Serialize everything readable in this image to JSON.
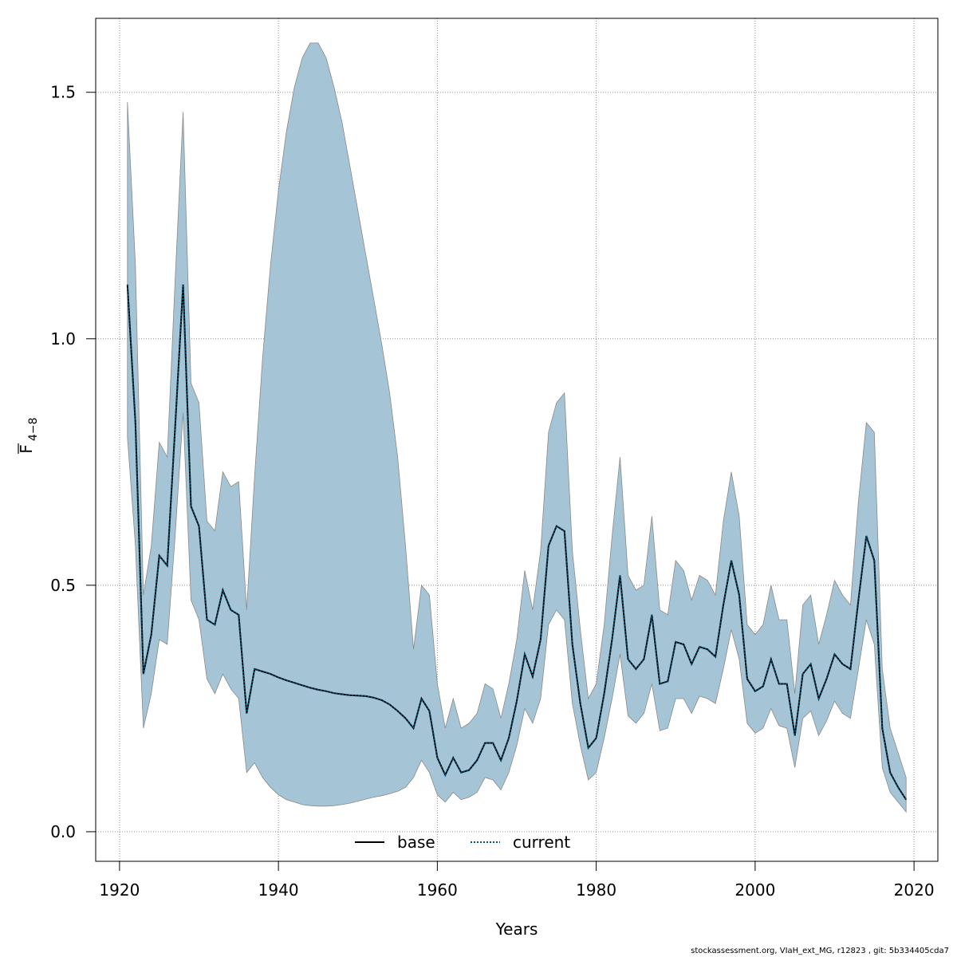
{
  "chart_data": {
    "type": "area",
    "xlabel": "Years",
    "ylabel_main": "F",
    "ylabel_sub": "4−8",
    "xlim": [
      1917,
      2023
    ],
    "ylim": [
      -0.06,
      1.65
    ],
    "x_ticks": [
      1920,
      1940,
      1960,
      1980,
      2000,
      2020
    ],
    "y_ticks": [
      0.0,
      0.5,
      1.0,
      1.5
    ],
    "y_tick_labels": [
      "0.0",
      "0.5",
      "1.0",
      "1.5"
    ],
    "grid": true,
    "band_color": "#a5c4d5",
    "band_edge_color": "#8a8a8a",
    "legend_position": "bottom-center",
    "legend": [
      {
        "label": "base",
        "style": "solid",
        "color": "#000000"
      },
      {
        "label": "current",
        "style": "dotted",
        "color": "#00506e"
      }
    ],
    "years": [
      1921,
      1922,
      1923,
      1924,
      1925,
      1926,
      1927,
      1928,
      1929,
      1930,
      1931,
      1932,
      1933,
      1934,
      1935,
      1936,
      1937,
      1938,
      1939,
      1940,
      1941,
      1942,
      1943,
      1944,
      1945,
      1946,
      1947,
      1948,
      1949,
      1950,
      1951,
      1952,
      1953,
      1954,
      1955,
      1956,
      1957,
      1958,
      1959,
      1960,
      1961,
      1962,
      1963,
      1964,
      1965,
      1966,
      1967,
      1968,
      1969,
      1970,
      1971,
      1972,
      1973,
      1974,
      1975,
      1976,
      1977,
      1978,
      1979,
      1980,
      1981,
      1982,
      1983,
      1984,
      1985,
      1986,
      1987,
      1988,
      1989,
      1990,
      1991,
      1992,
      1993,
      1994,
      1995,
      1996,
      1997,
      1998,
      1999,
      2000,
      2001,
      2002,
      2003,
      2004,
      2005,
      2006,
      2007,
      2008,
      2009,
      2010,
      2011,
      2012,
      2013,
      2014,
      2015,
      2016,
      2017,
      2018,
      2019
    ],
    "estimate": [
      1.11,
      0.83,
      0.32,
      0.4,
      0.56,
      0.54,
      0.82,
      1.11,
      0.66,
      0.62,
      0.43,
      0.42,
      0.49,
      0.45,
      0.44,
      0.24,
      0.33,
      0.325,
      0.32,
      0.313,
      0.307,
      0.302,
      0.297,
      0.292,
      0.288,
      0.285,
      0.281,
      0.279,
      0.277,
      0.276,
      0.275,
      0.272,
      0.267,
      0.258,
      0.245,
      0.23,
      0.21,
      0.27,
      0.245,
      0.15,
      0.115,
      0.15,
      0.12,
      0.125,
      0.145,
      0.18,
      0.18,
      0.145,
      0.19,
      0.265,
      0.36,
      0.315,
      0.39,
      0.58,
      0.62,
      0.61,
      0.38,
      0.26,
      0.17,
      0.19,
      0.28,
      0.39,
      0.52,
      0.35,
      0.33,
      0.35,
      0.44,
      0.3,
      0.305,
      0.385,
      0.38,
      0.34,
      0.375,
      0.37,
      0.355,
      0.46,
      0.55,
      0.48,
      0.31,
      0.285,
      0.295,
      0.35,
      0.3,
      0.3,
      0.195,
      0.32,
      0.34,
      0.27,
      0.31,
      0.36,
      0.34,
      0.33,
      0.47,
      0.6,
      0.55,
      0.21,
      0.12,
      0.09,
      0.065
    ],
    "lower": [
      0.8,
      0.58,
      0.21,
      0.28,
      0.39,
      0.38,
      0.6,
      0.85,
      0.47,
      0.43,
      0.31,
      0.28,
      0.32,
      0.29,
      0.27,
      0.12,
      0.14,
      0.11,
      0.09,
      0.075,
      0.065,
      0.06,
      0.055,
      0.053,
      0.052,
      0.052,
      0.053,
      0.055,
      0.058,
      0.062,
      0.066,
      0.07,
      0.073,
      0.077,
      0.082,
      0.09,
      0.11,
      0.145,
      0.12,
      0.075,
      0.06,
      0.08,
      0.065,
      0.07,
      0.08,
      0.11,
      0.105,
      0.085,
      0.12,
      0.175,
      0.25,
      0.22,
      0.27,
      0.42,
      0.45,
      0.43,
      0.26,
      0.175,
      0.105,
      0.12,
      0.19,
      0.27,
      0.36,
      0.235,
      0.22,
      0.24,
      0.3,
      0.205,
      0.21,
      0.27,
      0.27,
      0.24,
      0.275,
      0.27,
      0.26,
      0.33,
      0.41,
      0.35,
      0.22,
      0.2,
      0.21,
      0.25,
      0.215,
      0.21,
      0.13,
      0.23,
      0.245,
      0.195,
      0.225,
      0.265,
      0.24,
      0.23,
      0.33,
      0.43,
      0.38,
      0.13,
      0.08,
      0.06,
      0.04
    ],
    "upper": [
      1.48,
      1.15,
      0.48,
      0.58,
      0.79,
      0.76,
      1.12,
      1.46,
      0.91,
      0.87,
      0.63,
      0.61,
      0.73,
      0.7,
      0.71,
      0.45,
      0.72,
      0.96,
      1.15,
      1.3,
      1.42,
      1.51,
      1.57,
      1.6,
      1.6,
      1.57,
      1.51,
      1.44,
      1.35,
      1.26,
      1.17,
      1.08,
      0.99,
      0.89,
      0.76,
      0.58,
      0.37,
      0.5,
      0.48,
      0.3,
      0.21,
      0.27,
      0.21,
      0.22,
      0.24,
      0.3,
      0.29,
      0.23,
      0.3,
      0.39,
      0.53,
      0.45,
      0.57,
      0.81,
      0.87,
      0.89,
      0.57,
      0.41,
      0.27,
      0.3,
      0.42,
      0.6,
      0.76,
      0.52,
      0.49,
      0.5,
      0.64,
      0.45,
      0.44,
      0.55,
      0.53,
      0.47,
      0.52,
      0.51,
      0.48,
      0.63,
      0.73,
      0.64,
      0.42,
      0.4,
      0.42,
      0.5,
      0.43,
      0.43,
      0.28,
      0.46,
      0.48,
      0.38,
      0.44,
      0.51,
      0.48,
      0.46,
      0.67,
      0.83,
      0.81,
      0.33,
      0.21,
      0.16,
      0.11
    ]
  },
  "footer": {
    "credit": "stockassessment.org, VIaH_ext_MG, r12823 , git: 5b334405cda7"
  }
}
